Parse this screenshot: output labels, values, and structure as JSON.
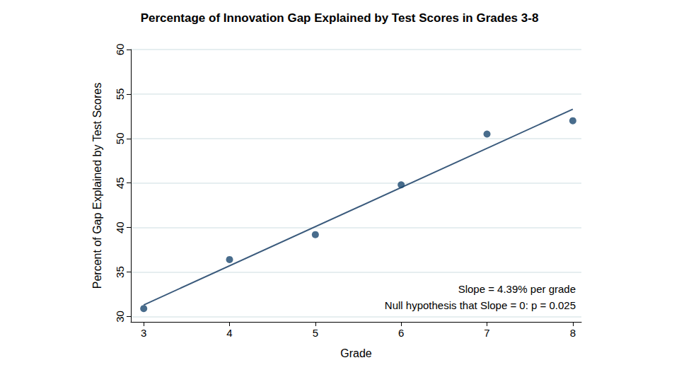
{
  "chart_data": {
    "type": "scatter",
    "title": "Percentage of Innovation Gap Explained by Test Scores in Grades 3-8",
    "x_label": "Grade",
    "y_label": "Percent of Gap Explained by Test Scores",
    "series": [
      {
        "type": "scatter",
        "color": "#1a476f",
        "marker": "circle",
        "x": [
          3,
          4,
          5,
          6,
          7,
          8
        ],
        "values": [
          30.9,
          36.4,
          39.2,
          44.8,
          50.5,
          52.0
        ]
      },
      {
        "type": "line",
        "color": "#3a5a7c",
        "line_style": "solid",
        "x": [
          3,
          8
        ],
        "values": [
          31.3,
          53.3
        ]
      }
    ],
    "xlim": [
      2.85,
      8.1
    ],
    "xticks": [
      3,
      4,
      5,
      6,
      7,
      8
    ],
    "ylim": [
      29.4,
      60
    ],
    "yticks": [
      30,
      35,
      40,
      45,
      50,
      55,
      60
    ],
    "grid": true,
    "annotations": [
      "Slope = 4.39% per grade",
      "Null hypothesis that Slope = 0: p = 0.025"
    ]
  }
}
